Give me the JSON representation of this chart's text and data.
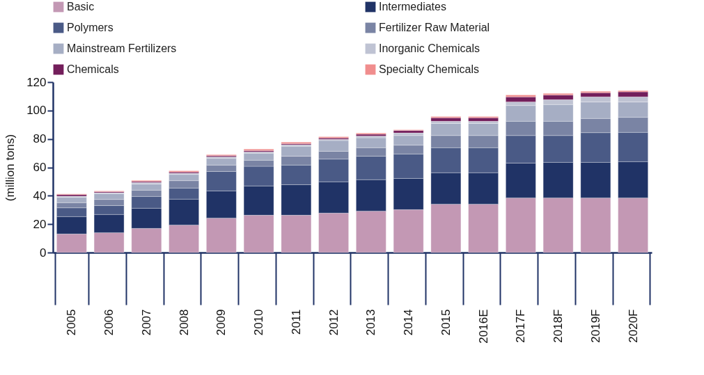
{
  "chart_data": {
    "type": "bar",
    "stacked": true,
    "ylabel": "(million tons)",
    "categories": [
      "2005",
      "2006",
      "2007",
      "2008",
      "2009",
      "2010",
      "2011",
      "2012",
      "2013",
      "2014",
      "2015",
      "2016E",
      "2017F",
      "2018F",
      "2019F",
      "2020F"
    ],
    "series": [
      {
        "name": "Basic",
        "color": "#c398b4",
        "values": [
          13.1,
          14.0,
          17.0,
          19.4,
          24.3,
          26.3,
          26.3,
          27.8,
          29.2,
          30.2,
          34.1,
          34.1,
          38.5,
          38.5,
          38.5,
          38.5
        ]
      },
      {
        "name": "Intermediates",
        "color": "#203366",
        "values": [
          12.2,
          12.8,
          14.2,
          18.2,
          19.1,
          20.6,
          21.5,
          22.0,
          22.1,
          22.0,
          22.1,
          22.1,
          24.5,
          25.0,
          25.0,
          25.5
        ]
      },
      {
        "name": "Polymers",
        "color": "#4a5a86",
        "values": [
          6.2,
          6.3,
          8.3,
          7.8,
          13.7,
          13.8,
          13.8,
          16.0,
          16.5,
          17.2,
          17.6,
          17.6,
          19.4,
          18.9,
          20.9,
          20.6
        ]
      },
      {
        "name": "Fertilizer Raw Material",
        "color": "#7a84a4",
        "values": [
          3.6,
          4.3,
          4.4,
          5.2,
          4.5,
          4.3,
          6.2,
          5.5,
          6.0,
          6.2,
          8.6,
          8.6,
          10.0,
          10.0,
          10.0,
          10.6
        ]
      },
      {
        "name": "Mainstream Fertilizers",
        "color": "#a6aec4",
        "values": [
          3.8,
          4.1,
          4.3,
          4.4,
          4.7,
          4.9,
          7.0,
          7.6,
          7.0,
          6.8,
          8.5,
          8.5,
          11.1,
          11.8,
          11.6,
          10.8
        ]
      },
      {
        "name": "Inorganic Chemicals",
        "color": "#bfc3d3",
        "values": [
          0.8,
          0.6,
          1.1,
          0.8,
          1.1,
          1.0,
          1.1,
          0.8,
          1.2,
          1.8,
          1.5,
          1.5,
          2.6,
          3.4,
          3.6,
          3.6
        ]
      },
      {
        "name": "Chemicals",
        "color": "#731e5b",
        "values": [
          1.1,
          0.7,
          0.8,
          0.9,
          0.8,
          0.9,
          0.8,
          1.0,
          1.3,
          1.7,
          2.5,
          2.5,
          3.5,
          3.3,
          2.9,
          3.5
        ]
      },
      {
        "name": "Specialty Chemicals",
        "color": "#f08d8d",
        "values": [
          0.5,
          0.6,
          0.7,
          0.9,
          0.7,
          1.0,
          1.0,
          0.9,
          0.8,
          0.6,
          0.9,
          0.9,
          1.4,
          1.1,
          1.0,
          0.9
        ]
      }
    ],
    "ylim": [
      0,
      120
    ],
    "yticks": [
      0,
      20,
      40,
      60,
      80,
      100,
      120
    ],
    "grid": false,
    "legend": "top"
  }
}
